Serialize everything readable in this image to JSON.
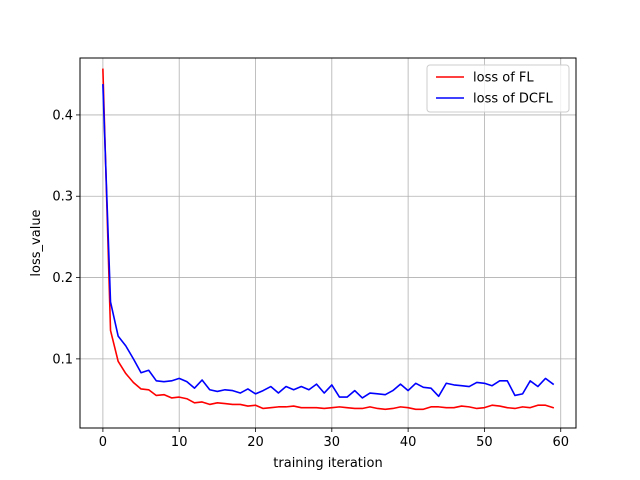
{
  "chart_data": {
    "type": "line",
    "title": "",
    "xlabel": "training iteration",
    "ylabel": "loss_value",
    "xlim": [
      -3,
      62
    ],
    "ylim": [
      0.015,
      0.47
    ],
    "xticks": [
      0,
      10,
      20,
      30,
      40,
      50,
      60
    ],
    "yticks": [
      0.1,
      0.2,
      0.3,
      0.4
    ],
    "grid": true,
    "legend_position": "top-right",
    "x": [
      0,
      1,
      2,
      3,
      4,
      5,
      6,
      7,
      8,
      9,
      10,
      11,
      12,
      13,
      14,
      15,
      16,
      17,
      18,
      19,
      20,
      21,
      22,
      23,
      24,
      25,
      26,
      27,
      28,
      29,
      30,
      31,
      32,
      33,
      34,
      35,
      36,
      37,
      38,
      39,
      40,
      41,
      42,
      43,
      44,
      45,
      46,
      47,
      48,
      49,
      50,
      51,
      52,
      53,
      54,
      55,
      56,
      57,
      58,
      59
    ],
    "series": [
      {
        "name": "loss of FL",
        "color": "#ff0000",
        "values": [
          0.456,
          0.135,
          0.097,
          0.082,
          0.071,
          0.063,
          0.062,
          0.055,
          0.056,
          0.052,
          0.053,
          0.051,
          0.046,
          0.047,
          0.044,
          0.046,
          0.045,
          0.044,
          0.044,
          0.042,
          0.043,
          0.039,
          0.04,
          0.041,
          0.041,
          0.042,
          0.04,
          0.04,
          0.04,
          0.039,
          0.04,
          0.041,
          0.04,
          0.039,
          0.039,
          0.041,
          0.039,
          0.038,
          0.039,
          0.041,
          0.04,
          0.038,
          0.038,
          0.041,
          0.041,
          0.04,
          0.04,
          0.042,
          0.041,
          0.039,
          0.04,
          0.043,
          0.042,
          0.04,
          0.039,
          0.041,
          0.04,
          0.043,
          0.043,
          0.04
        ]
      },
      {
        "name": "loss of DCFL",
        "color": "#0000ff",
        "values": [
          0.437,
          0.17,
          0.128,
          0.116,
          0.1,
          0.083,
          0.086,
          0.073,
          0.072,
          0.073,
          0.076,
          0.072,
          0.064,
          0.074,
          0.062,
          0.06,
          0.062,
          0.061,
          0.058,
          0.063,
          0.057,
          0.061,
          0.066,
          0.058,
          0.066,
          0.062,
          0.066,
          0.062,
          0.069,
          0.058,
          0.068,
          0.053,
          0.053,
          0.061,
          0.052,
          0.058,
          0.057,
          0.056,
          0.061,
          0.069,
          0.061,
          0.07,
          0.065,
          0.064,
          0.054,
          0.07,
          0.068,
          0.067,
          0.066,
          0.071,
          0.07,
          0.067,
          0.073,
          0.073,
          0.055,
          0.057,
          0.073,
          0.066,
          0.076,
          0.069
        ]
      }
    ]
  }
}
